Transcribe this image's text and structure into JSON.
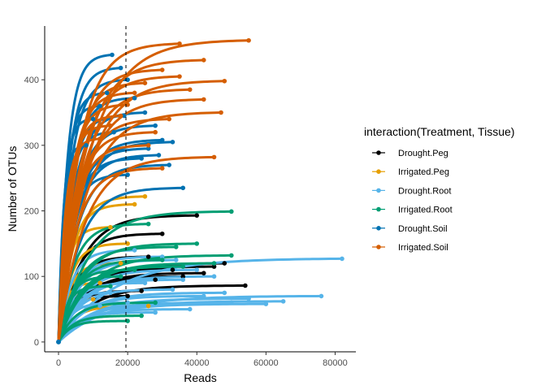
{
  "chart_data": {
    "type": "line",
    "xlabel": "Reads",
    "ylabel": "Number of OTUs",
    "xlim": [
      -4000,
      86000
    ],
    "ylim": [
      -15,
      482
    ],
    "x_ticks": [
      0,
      20000,
      40000,
      60000,
      80000
    ],
    "y_ticks": [
      0,
      100,
      200,
      300,
      400
    ],
    "x_tick_labels": [
      "0",
      "20000",
      "40000",
      "60000",
      "80000"
    ],
    "y_tick_labels": [
      "0",
      "100",
      "200",
      "300",
      "400"
    ],
    "vline_x": 19500,
    "grid": false,
    "legend": {
      "title": "interaction(Treatment, Tissue)",
      "placement": "right",
      "entries": [
        "Drought.Peg",
        "Irrigated.Peg",
        "Drought.Root",
        "Irrigated.Root",
        "Drought.Soil",
        "Irrigated.Soil"
      ]
    },
    "series": [
      {
        "name": "Drought.Peg",
        "color": "#000000",
        "curves": [
          {
            "x_end": 54000,
            "y_end": 86
          },
          {
            "x_end": 48000,
            "y_end": 120
          },
          {
            "x_end": 45000,
            "y_end": 115
          },
          {
            "x_end": 40000,
            "y_end": 193
          },
          {
            "x_end": 30000,
            "y_end": 165
          },
          {
            "x_end": 33000,
            "y_end": 110
          },
          {
            "x_end": 28000,
            "y_end": 95
          },
          {
            "x_end": 24000,
            "y_end": 78
          },
          {
            "x_end": 36000,
            "y_end": 100
          },
          {
            "x_end": 20000,
            "y_end": 70
          },
          {
            "x_end": 42000,
            "y_end": 105
          },
          {
            "x_end": 26000,
            "y_end": 130
          }
        ]
      },
      {
        "name": "Irrigated.Peg",
        "color": "#E69F00",
        "curves": [
          {
            "x_end": 25000,
            "y_end": 222
          },
          {
            "x_end": 22000,
            "y_end": 210
          },
          {
            "x_end": 15000,
            "y_end": 175
          },
          {
            "x_end": 18000,
            "y_end": 120
          },
          {
            "x_end": 26000,
            "y_end": 55
          },
          {
            "x_end": 12000,
            "y_end": 90
          },
          {
            "x_end": 20000,
            "y_end": 150
          },
          {
            "x_end": 10000,
            "y_end": 65
          }
        ]
      },
      {
        "name": "Drought.Root",
        "color": "#56B4E9",
        "curves": [
          {
            "x_end": 82000,
            "y_end": 127
          },
          {
            "x_end": 76000,
            "y_end": 70
          },
          {
            "x_end": 65000,
            "y_end": 62
          },
          {
            "x_end": 60000,
            "y_end": 58
          },
          {
            "x_end": 55000,
            "y_end": 66
          },
          {
            "x_end": 50000,
            "y_end": 60
          },
          {
            "x_end": 48000,
            "y_end": 75
          },
          {
            "x_end": 45000,
            "y_end": 100
          },
          {
            "x_end": 40000,
            "y_end": 110
          },
          {
            "x_end": 38000,
            "y_end": 50
          },
          {
            "x_end": 36000,
            "y_end": 95
          },
          {
            "x_end": 33000,
            "y_end": 80
          },
          {
            "x_end": 30000,
            "y_end": 130
          },
          {
            "x_end": 28000,
            "y_end": 45
          },
          {
            "x_end": 25000,
            "y_end": 90
          },
          {
            "x_end": 22000,
            "y_end": 140
          },
          {
            "x_end": 20000,
            "y_end": 60
          },
          {
            "x_end": 18000,
            "y_end": 100
          },
          {
            "x_end": 15000,
            "y_end": 75
          },
          {
            "x_end": 12000,
            "y_end": 55
          },
          {
            "x_end": 42000,
            "y_end": 70
          },
          {
            "x_end": 34000,
            "y_end": 125
          }
        ]
      },
      {
        "name": "Irrigated.Root",
        "color": "#009E73",
        "curves": [
          {
            "x_end": 50000,
            "y_end": 199
          },
          {
            "x_end": 50000,
            "y_end": 132
          },
          {
            "x_end": 45000,
            "y_end": 120
          },
          {
            "x_end": 40000,
            "y_end": 150
          },
          {
            "x_end": 34000,
            "y_end": 145
          },
          {
            "x_end": 26000,
            "y_end": 180
          },
          {
            "x_end": 24000,
            "y_end": 40
          },
          {
            "x_end": 20000,
            "y_end": 32
          },
          {
            "x_end": 22000,
            "y_end": 110
          },
          {
            "x_end": 30000,
            "y_end": 125
          },
          {
            "x_end": 18000,
            "y_end": 100
          },
          {
            "x_end": 15000,
            "y_end": 85
          },
          {
            "x_end": 36000,
            "y_end": 115
          },
          {
            "x_end": 28000,
            "y_end": 60
          }
        ]
      },
      {
        "name": "Drought.Soil",
        "color": "#0072B2",
        "curves": [
          {
            "x_end": 15500,
            "y_end": 438
          },
          {
            "x_end": 18000,
            "y_end": 418
          },
          {
            "x_end": 20000,
            "y_end": 400
          },
          {
            "x_end": 22000,
            "y_end": 372
          },
          {
            "x_end": 25000,
            "y_end": 350
          },
          {
            "x_end": 28000,
            "y_end": 330
          },
          {
            "x_end": 30000,
            "y_end": 308
          },
          {
            "x_end": 26000,
            "y_end": 295
          },
          {
            "x_end": 33000,
            "y_end": 305
          },
          {
            "x_end": 24000,
            "y_end": 280
          },
          {
            "x_end": 32000,
            "y_end": 270
          },
          {
            "x_end": 36000,
            "y_end": 235
          },
          {
            "x_end": 14000,
            "y_end": 380
          },
          {
            "x_end": 12000,
            "y_end": 360
          },
          {
            "x_end": 10000,
            "y_end": 340
          },
          {
            "x_end": 20000,
            "y_end": 255
          },
          {
            "x_end": 16000,
            "y_end": 320
          },
          {
            "x_end": 29000,
            "y_end": 285
          },
          {
            "x_end": 19000,
            "y_end": 345
          },
          {
            "x_end": 8000,
            "y_end": 300
          }
        ]
      },
      {
        "name": "Irrigated.Soil",
        "color": "#D55E00",
        "curves": [
          {
            "x_end": 55000,
            "y_end": 460
          },
          {
            "x_end": 35000,
            "y_end": 455
          },
          {
            "x_end": 42000,
            "y_end": 430
          },
          {
            "x_end": 30000,
            "y_end": 415
          },
          {
            "x_end": 48000,
            "y_end": 398
          },
          {
            "x_end": 42000,
            "y_end": 370
          },
          {
            "x_end": 47000,
            "y_end": 350
          },
          {
            "x_end": 32000,
            "y_end": 340
          },
          {
            "x_end": 28000,
            "y_end": 320
          },
          {
            "x_end": 45000,
            "y_end": 282
          },
          {
            "x_end": 30000,
            "y_end": 265
          },
          {
            "x_end": 25000,
            "y_end": 395
          },
          {
            "x_end": 22000,
            "y_end": 380
          },
          {
            "x_end": 20000,
            "y_end": 362
          },
          {
            "x_end": 18000,
            "y_end": 345
          },
          {
            "x_end": 15000,
            "y_end": 330
          },
          {
            "x_end": 12000,
            "y_end": 310
          },
          {
            "x_end": 35000,
            "y_end": 405
          },
          {
            "x_end": 26000,
            "y_end": 300
          },
          {
            "x_end": 38000,
            "y_end": 385
          }
        ]
      }
    ]
  }
}
